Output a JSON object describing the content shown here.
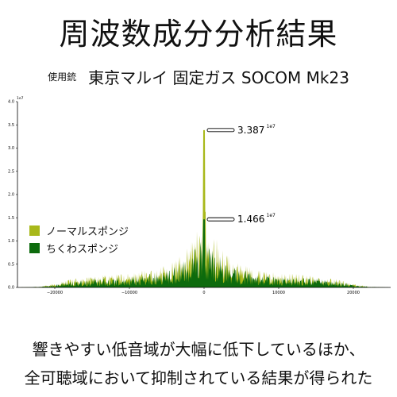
{
  "title": "周波数成分分析結果",
  "weapon_label": "使用銃",
  "weapon_name": "東京マルイ 固定ガス SOCOM Mk23",
  "caption_line1": "響きやすい低音域が大幅に低下しているほか、",
  "caption_line2": "全可聴域において抑制されている結果が得られた",
  "colors": {
    "normal": "#a8b81a",
    "chikuwa": "#0d6b0d",
    "background": "#ffffff"
  },
  "chart_data": {
    "type": "area",
    "title": "",
    "xlabel": "",
    "ylabel": "",
    "y_multiplier": "1e7",
    "xlim": [
      -25000,
      25000
    ],
    "ylim": [
      0,
      4.0
    ],
    "x_ticks": [
      -20000,
      -10000,
      0,
      10000,
      20000
    ],
    "x_tick_labels": [
      "−20000",
      "−10000",
      "0",
      "10000",
      "20000"
    ],
    "y_ticks": [
      0,
      0.5,
      1.0,
      1.5,
      2.0,
      2.5,
      3.0,
      3.5,
      4.0
    ],
    "y_tick_labels": [
      "0.0",
      "0.5",
      "1.0",
      "1.5",
      "2.0",
      "2.5",
      "3.0",
      "3.5",
      "4.0"
    ],
    "grid": false,
    "legend": "left",
    "series": [
      {
        "name": "ノーマルスポンジ",
        "peak": 3.387,
        "envelope": [
          [
            -25000,
            0.0
          ],
          [
            -22000,
            0.02
          ],
          [
            -20000,
            0.08
          ],
          [
            -18000,
            0.18
          ],
          [
            -15000,
            0.25
          ],
          [
            -12000,
            0.3
          ],
          [
            -10000,
            0.3
          ],
          [
            -8000,
            0.38
          ],
          [
            -6000,
            0.45
          ],
          [
            -4000,
            0.6
          ],
          [
            -3000,
            0.75
          ],
          [
            -2000,
            0.95
          ],
          [
            -1000,
            1.2
          ],
          [
            -400,
            1.5
          ],
          [
            0,
            2.0
          ],
          [
            400,
            1.5
          ],
          [
            1000,
            1.25
          ],
          [
            2000,
            0.95
          ],
          [
            3000,
            0.75
          ],
          [
            4000,
            0.6
          ],
          [
            6000,
            0.45
          ],
          [
            8000,
            0.38
          ],
          [
            10000,
            0.3
          ],
          [
            12000,
            0.3
          ],
          [
            15000,
            0.25
          ],
          [
            18000,
            0.18
          ],
          [
            20000,
            0.08
          ],
          [
            22000,
            0.02
          ],
          [
            25000,
            0.0
          ]
        ]
      },
      {
        "name": "ちくわスポンジ",
        "peak": 1.466,
        "envelope": [
          [
            -25000,
            0.0
          ],
          [
            -22000,
            0.015
          ],
          [
            -20000,
            0.06
          ],
          [
            -18000,
            0.14
          ],
          [
            -15000,
            0.2
          ],
          [
            -12000,
            0.22
          ],
          [
            -10000,
            0.22
          ],
          [
            -8000,
            0.28
          ],
          [
            -6000,
            0.35
          ],
          [
            -4000,
            0.45
          ],
          [
            -3000,
            0.55
          ],
          [
            -2000,
            0.7
          ],
          [
            -1000,
            0.9
          ],
          [
            -400,
            1.05
          ],
          [
            0,
            1.1
          ],
          [
            400,
            1.05
          ],
          [
            1000,
            0.9
          ],
          [
            2000,
            0.7
          ],
          [
            3000,
            0.55
          ],
          [
            4000,
            0.45
          ],
          [
            6000,
            0.35
          ],
          [
            8000,
            0.28
          ],
          [
            10000,
            0.22
          ],
          [
            12000,
            0.22
          ],
          [
            15000,
            0.2
          ],
          [
            18000,
            0.14
          ],
          [
            20000,
            0.06
          ],
          [
            22000,
            0.015
          ],
          [
            25000,
            0.0
          ]
        ]
      }
    ],
    "annotations": [
      {
        "label": "3.387",
        "exponent": "1e7",
        "value": 3.387,
        "series": "ノーマルスポンジ"
      },
      {
        "label": "1.466",
        "exponent": "1e7",
        "value": 1.466,
        "series": "ちくわスポンジ"
      }
    ]
  }
}
